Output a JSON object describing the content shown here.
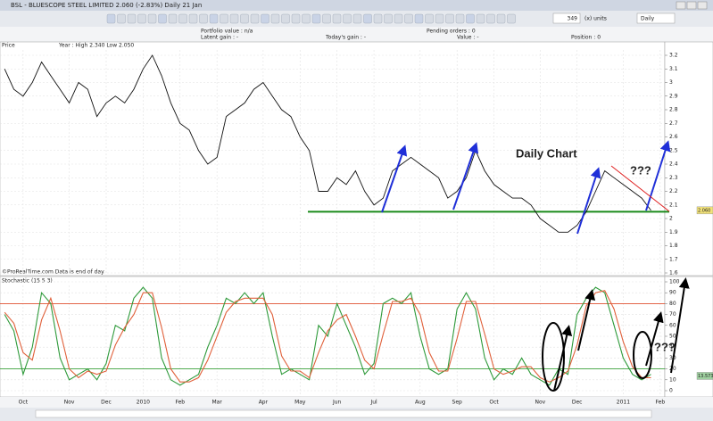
{
  "window": {
    "title": "BSL - BLUESCOPE STEEL LIMITED   2.060 (-2.83%)   Daily  21 Jan"
  },
  "toolbar": {
    "bars": "349",
    "units": "(x) units",
    "period": "Daily"
  },
  "info": {
    "portfolio_value": "Portfolio value : n/a",
    "pending_orders": "Pending orders : 0",
    "latent_gain": "Latent gain : -",
    "todays_gain": "Today's gain : -",
    "value": "Value : -",
    "position": "Position : 0"
  },
  "footer": "©ProRealTime.com  Data is end of day",
  "chart_data": [
    {
      "type": "line",
      "title": "Price",
      "subtitle": "Year : High 2.340 Low 2.050",
      "categories": [
        null,
        null,
        "Oct",
        null,
        null,
        null,
        null,
        "Nov",
        null,
        null,
        null,
        "Dec",
        null,
        null,
        null,
        "2010",
        null,
        null,
        null,
        "Feb",
        null,
        null,
        null,
        "Mar",
        null,
        null,
        null,
        null,
        "Apr",
        null,
        null,
        null,
        "May",
        null,
        null,
        null,
        "Jun",
        null,
        null,
        null,
        "Jul",
        null,
        null,
        null,
        null,
        "Aug",
        null,
        null,
        null,
        "Sep",
        null,
        null,
        null,
        "Oct",
        null,
        null,
        null,
        null,
        "Nov",
        null,
        null,
        null,
        "Dec",
        null,
        null,
        null,
        null,
        "2011",
        null,
        null,
        null,
        "Feb"
      ],
      "series": [
        {
          "name": "BSL",
          "color": "#111111",
          "values": [
            3.1,
            2.95,
            2.9,
            3.0,
            3.15,
            3.05,
            2.95,
            2.85,
            3.0,
            2.95,
            2.75,
            2.85,
            2.9,
            2.85,
            2.95,
            3.1,
            3.2,
            3.05,
            2.85,
            2.7,
            2.65,
            2.5,
            2.4,
            2.45,
            2.75,
            2.8,
            2.85,
            2.95,
            3.0,
            2.9,
            2.8,
            2.75,
            2.6,
            2.5,
            2.2,
            2.2,
            2.3,
            2.25,
            2.35,
            2.2,
            2.1,
            2.15,
            2.35,
            2.4,
            2.45,
            2.4,
            2.35,
            2.3,
            2.15,
            2.2,
            2.3,
            2.5,
            2.35,
            2.25,
            2.2,
            2.15,
            2.15,
            2.1,
            2.0,
            1.95,
            1.9,
            1.9,
            1.95,
            2.05,
            2.2,
            2.35,
            2.3,
            2.25,
            2.2,
            2.15,
            2.06,
            null
          ]
        }
      ],
      "ylim": [
        1.6,
        3.2
      ],
      "yticks": [
        1.6,
        1.7,
        1.8,
        1.9,
        2,
        2.1,
        2.2,
        2.3,
        2.4,
        2.5,
        2.6,
        2.7,
        2.8,
        2.9,
        3,
        3.1,
        3.2
      ],
      "grid": true,
      "reference_lines": [
        {
          "value": 2.05,
          "color": "#1a8a1a"
        }
      ],
      "last_value": 2.06,
      "last_value_label": "2.060",
      "annotations": [
        "Daily Chart",
        "???"
      ]
    },
    {
      "type": "line",
      "title": "Stochastic (15 5 3)",
      "series": [
        {
          "color": "#2e9a3a",
          "values": [
            70,
            55,
            15,
            40,
            90,
            80,
            30,
            10,
            15,
            20,
            10,
            25,
            60,
            55,
            85,
            95,
            85,
            30,
            10,
            5,
            10,
            15,
            40,
            60,
            85,
            80,
            90,
            80,
            90,
            50,
            15,
            20,
            15,
            10,
            60,
            50,
            80,
            60,
            40,
            15,
            25,
            80,
            85,
            80,
            90,
            50,
            20,
            15,
            20,
            75,
            90,
            75,
            30,
            10,
            20,
            15,
            30,
            15,
            10,
            5,
            20,
            15,
            70,
            85,
            95,
            90,
            60,
            30,
            15,
            10,
            15,
            null
          ]
        },
        {
          "color": "#e0603a",
          "values": [
            72,
            62,
            35,
            28,
            65,
            85,
            55,
            20,
            12,
            18,
            15,
            18,
            42,
            58,
            70,
            90,
            90,
            58,
            20,
            8,
            8,
            12,
            28,
            50,
            72,
            82,
            85,
            85,
            85,
            70,
            32,
            18,
            18,
            12,
            35,
            55,
            65,
            70,
            50,
            28,
            20,
            52,
            82,
            82,
            85,
            70,
            35,
            18,
            18,
            48,
            82,
            82,
            52,
            20,
            15,
            18,
            22,
            22,
            12,
            8,
            12,
            18,
            42,
            78,
            90,
            92,
            75,
            45,
            22,
            12,
            12,
            null
          ]
        }
      ],
      "ylim": [
        0,
        100
      ],
      "yticks": [
        0,
        10,
        20,
        30,
        40,
        50,
        60,
        70,
        80,
        90,
        100
      ],
      "grid": true,
      "reference_lines": [
        {
          "value": 80,
          "color": "#e05030"
        },
        {
          "value": 20,
          "color": "#3aa03a"
        }
      ],
      "last_value": 13.573,
      "last_value_label": "13.573",
      "annotations": [
        "???"
      ]
    }
  ]
}
